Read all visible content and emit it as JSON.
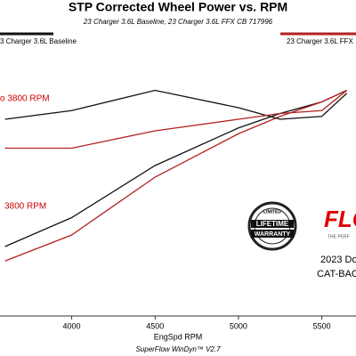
{
  "chart_data": {
    "type": "line",
    "title": "STP Corrected Wheel Power vs. RPM",
    "subtitle": "23 Charger 3.6L Baseline, 23 Charger 3.6L FFX CB 717996",
    "x_label": "EngSpd  RPM",
    "footer": "SuperFlow WinDyn™ V2.7",
    "x": [
      3600,
      4000,
      4500,
      5000,
      5250,
      5500,
      5650
    ],
    "xlim": [
      3570,
      5705
    ],
    "xticks": [
      4000,
      4500,
      5000,
      5500
    ],
    "ylim": [
      0,
      100
    ],
    "series": [
      {
        "name": "3 Charger 3.6L Baseline",
        "color": "#111111",
        "values": [
          24,
          34,
          52,
          65,
          70,
          74,
          78
        ]
      },
      {
        "name": "23 Charger 3.6L FFX",
        "color": "#b22222",
        "values": [
          19,
          28,
          48,
          63,
          69,
          74,
          78
        ]
      },
      {
        "color": "#111111",
        "values": [
          68,
          71,
          78,
          72,
          68,
          69,
          77
        ]
      },
      {
        "color": "#b22222",
        "values": [
          58,
          58,
          64,
          68,
          70,
          71,
          78
        ]
      }
    ],
    "annotations": [
      "o 3800 RPM",
      "3800 RPM"
    ],
    "badge": [
      "LIMITED",
      "LIFETIME",
      "WARRANTY"
    ],
    "logo": [
      "FLO",
      "THE PERF"
    ],
    "caption": [
      "2023 Do",
      "CAT-BAC"
    ]
  }
}
